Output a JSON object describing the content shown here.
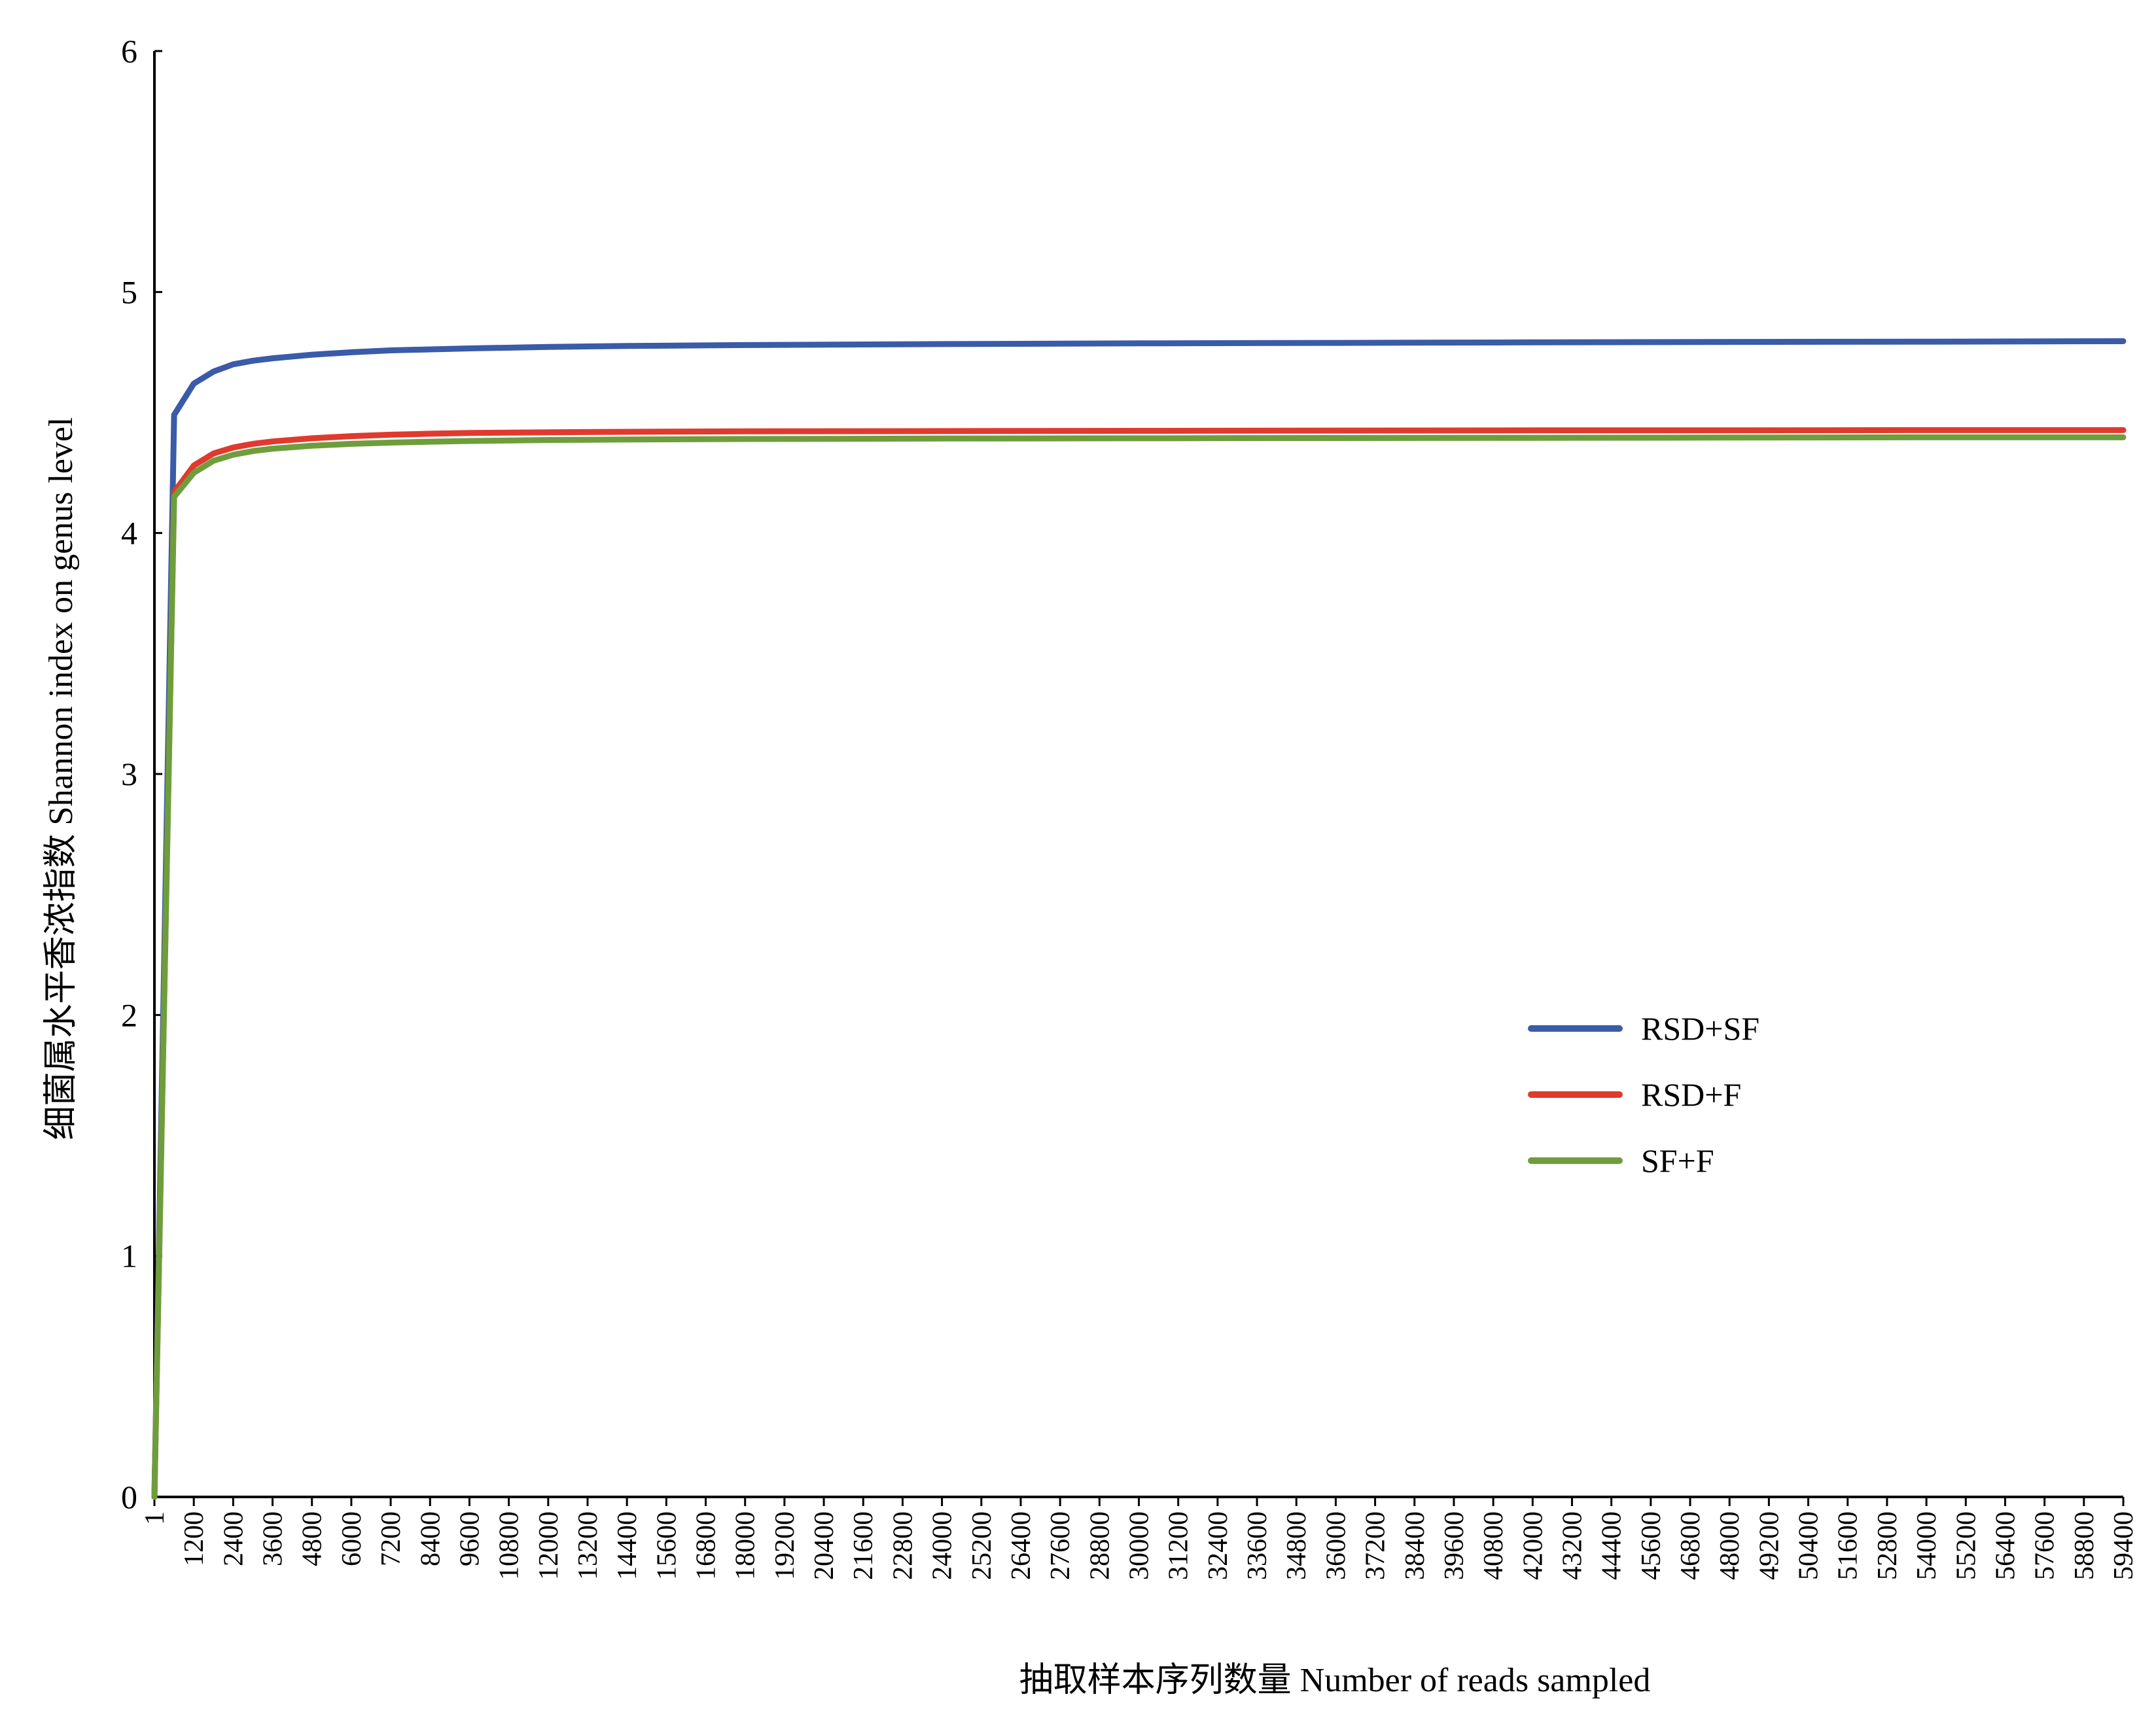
{
  "chart_data": {
    "type": "line",
    "title": "",
    "xlabel": "抽取样本序列数量 Number of reads sampled",
    "ylabel": "细菌属水平香浓指数 Shannon index on genus level",
    "ylim": [
      0,
      6
    ],
    "yticks": [
      0,
      1,
      2,
      3,
      4,
      5,
      6
    ],
    "xlim": [
      1,
      59900
    ],
    "xticks": [
      "1",
      "1200",
      "2400",
      "3600",
      "4800",
      "6000",
      "7200",
      "8400",
      "9600",
      "10800",
      "12000",
      "13200",
      "14400",
      "15600",
      "16800",
      "18000",
      "19200",
      "20400",
      "21600",
      "22800",
      "24000",
      "25200",
      "26400",
      "27600",
      "28800",
      "30000",
      "31200",
      "32400",
      "33600",
      "34800",
      "36000",
      "37200",
      "38400",
      "39600",
      "40800",
      "42000",
      "43200",
      "44400",
      "45600",
      "46800",
      "48000",
      "49200",
      "50400",
      "51600",
      "52800",
      "54000",
      "55200",
      "56400",
      "57600",
      "58800",
      "59400"
    ],
    "grid": false,
    "legend_position": "right-middle",
    "x": [
      1,
      600,
      1200,
      1800,
      2400,
      3000,
      3600,
      4800,
      6000,
      7200,
      8400,
      9600,
      12000,
      14400,
      18000,
      24000,
      30000,
      36000,
      42000,
      48000,
      54000,
      59900
    ],
    "series": [
      {
        "name": "RSD+SF",
        "color": "#3a5ba8",
        "values": [
          0,
          4.49,
          4.62,
          4.67,
          4.7,
          4.715,
          4.725,
          4.74,
          4.75,
          4.758,
          4.762,
          4.766,
          4.772,
          4.776,
          4.78,
          4.784,
          4.787,
          4.789,
          4.791,
          4.793,
          4.794,
          4.796
        ]
      },
      {
        "name": "RSD+F",
        "color": "#e03a2e",
        "values": [
          0,
          4.17,
          4.28,
          4.33,
          4.355,
          4.37,
          4.38,
          4.393,
          4.402,
          4.408,
          4.412,
          4.415,
          4.418,
          4.42,
          4.422,
          4.423,
          4.424,
          4.425,
          4.426,
          4.426,
          4.427,
          4.427
        ]
      },
      {
        "name": "SF+F",
        "color": "#6e9e3c",
        "values": [
          0,
          4.15,
          4.25,
          4.3,
          4.325,
          4.34,
          4.35,
          4.362,
          4.37,
          4.375,
          4.379,
          4.382,
          4.386,
          4.388,
          4.39,
          4.392,
          4.393,
          4.394,
          4.395,
          4.396,
          4.397,
          4.397
        ]
      }
    ]
  }
}
